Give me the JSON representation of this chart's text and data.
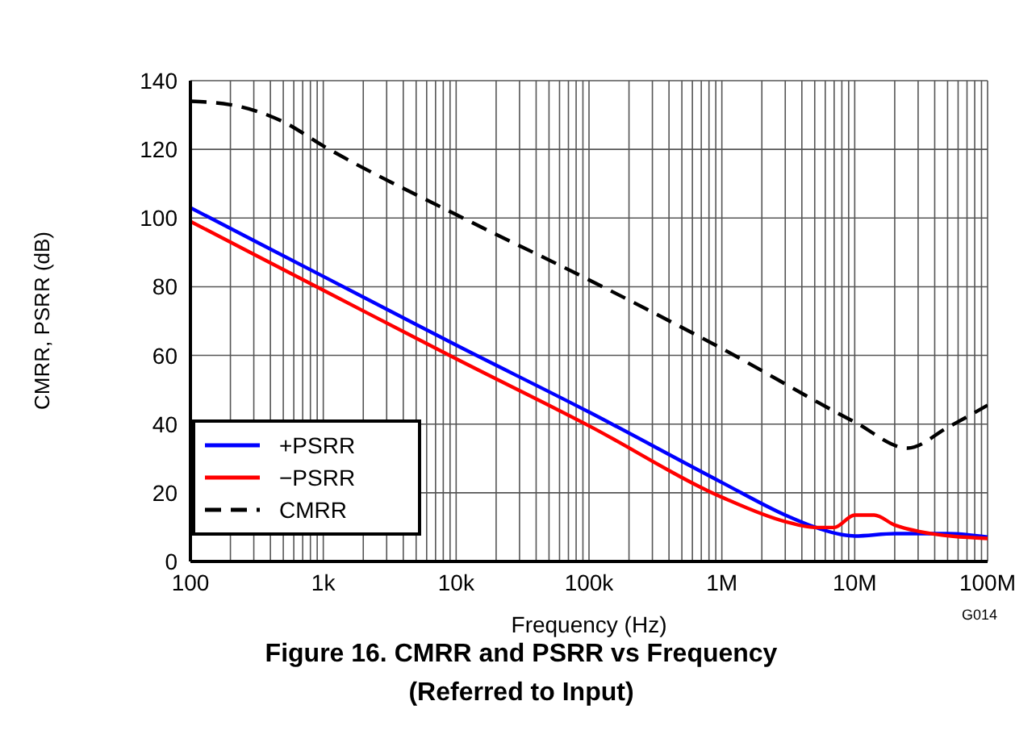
{
  "chart_data": {
    "type": "line",
    "title": "Figure 16. CMRR and PSRR vs Frequency\n(Referred to Input)",
    "xlabel": "Frequency (Hz)",
    "ylabel": "CMRR, PSRR (dB)",
    "log": "x",
    "grid": true,
    "legend": "bottom left",
    "annotations": [
      "G014"
    ],
    "xlim": [
      100,
      100000000
    ],
    "ylim": [
      0,
      140
    ],
    "yticks": [
      0,
      20,
      40,
      60,
      80,
      100,
      120,
      140
    ],
    "xticks": [
      100,
      {
        "value": 200,
        "label": null
      },
      {
        "value": 300,
        "label": null
      },
      {
        "value": 400,
        "label": null
      },
      {
        "value": 500,
        "label": null
      },
      {
        "value": 600,
        "label": null
      },
      {
        "value": 700,
        "label": null
      },
      {
        "value": 800,
        "label": null
      },
      {
        "value": 900,
        "label": null
      },
      {
        "value": 1000,
        "label": "1k"
      },
      {
        "value": 2000,
        "label": null
      },
      {
        "value": 3000,
        "label": null
      },
      {
        "value": 4000,
        "label": null
      },
      {
        "value": 5000,
        "label": null
      },
      {
        "value": 6000,
        "label": null
      },
      {
        "value": 7000,
        "label": null
      },
      {
        "value": 8000,
        "label": null
      },
      {
        "value": 9000,
        "label": null
      },
      {
        "value": 10000,
        "label": "10k"
      },
      {
        "value": 20000,
        "label": null
      },
      {
        "value": 30000,
        "label": null
      },
      {
        "value": 40000,
        "label": null
      },
      {
        "value": 50000,
        "label": null
      },
      {
        "value": 60000,
        "label": null
      },
      {
        "value": 70000,
        "label": null
      },
      {
        "value": 80000,
        "label": null
      },
      {
        "value": 90000,
        "label": null
      },
      {
        "value": 100000,
        "label": "100k"
      },
      {
        "value": 200000,
        "label": null
      },
      {
        "value": 300000,
        "label": null
      },
      {
        "value": 400000,
        "label": null
      },
      {
        "value": 500000,
        "label": null
      },
      {
        "value": 600000,
        "label": null
      },
      {
        "value": 700000,
        "label": null
      },
      {
        "value": 800000,
        "label": null
      },
      {
        "value": 900000,
        "label": null
      },
      {
        "value": 1000000,
        "label": "1M"
      },
      {
        "value": 2000000,
        "label": null
      },
      {
        "value": 3000000,
        "label": null
      },
      {
        "value": 4000000,
        "label": null
      },
      {
        "value": 5000000,
        "label": null
      },
      {
        "value": 6000000,
        "label": null
      },
      {
        "value": 7000000,
        "label": null
      },
      {
        "value": 8000000,
        "label": null
      },
      {
        "value": 9000000,
        "label": null
      },
      {
        "value": 10000000,
        "label": "10M"
      },
      {
        "value": 20000000,
        "label": null
      },
      {
        "value": 30000000,
        "label": null
      },
      {
        "value": 40000000,
        "label": null
      },
      {
        "value": 50000000,
        "label": null
      },
      {
        "value": 60000000,
        "label": null
      },
      {
        "value": 70000000,
        "label": null
      },
      {
        "value": 80000000,
        "label": null
      },
      {
        "value": 90000000,
        "label": null
      },
      {
        "value": 100000000,
        "label": "100M"
      }
    ],
    "series": [
      {
        "name": "+PSRR",
        "color": "#0000ff",
        "line_style": "solid",
        "x": [
          100,
          1000,
          10000,
          100000,
          1000000,
          3000000,
          5000000,
          8000000,
          10000000,
          20000000,
          50000000,
          100000000
        ],
        "values": [
          103,
          83,
          63,
          43.5,
          23,
          13.5,
          10,
          7.8,
          7.4,
          8.1,
          8.1,
          7.1
        ]
      },
      {
        "name": "−PSRR",
        "color": "#ff0000",
        "line_style": "solid",
        "x": [
          100,
          1000,
          10000,
          100000,
          1000000,
          3000000,
          5000000,
          7000000,
          10000000,
          14000000,
          20000000,
          30000000,
          100000000
        ],
        "values": [
          99,
          79,
          59,
          39.5,
          18.7,
          11.6,
          9.9,
          9.9,
          13.5,
          13.5,
          10.6,
          8.8,
          6.7
        ]
      },
      {
        "name": "CMRR",
        "color": "#000000",
        "line_style": "dashed",
        "x": [
          100,
          200,
          500,
          1000,
          10000,
          100000,
          1000000,
          10000000,
          25000000,
          50000000,
          100000000
        ],
        "values": [
          134,
          133,
          128,
          121,
          101,
          82,
          62,
          40.6,
          33,
          39,
          45.5
        ]
      }
    ]
  }
}
